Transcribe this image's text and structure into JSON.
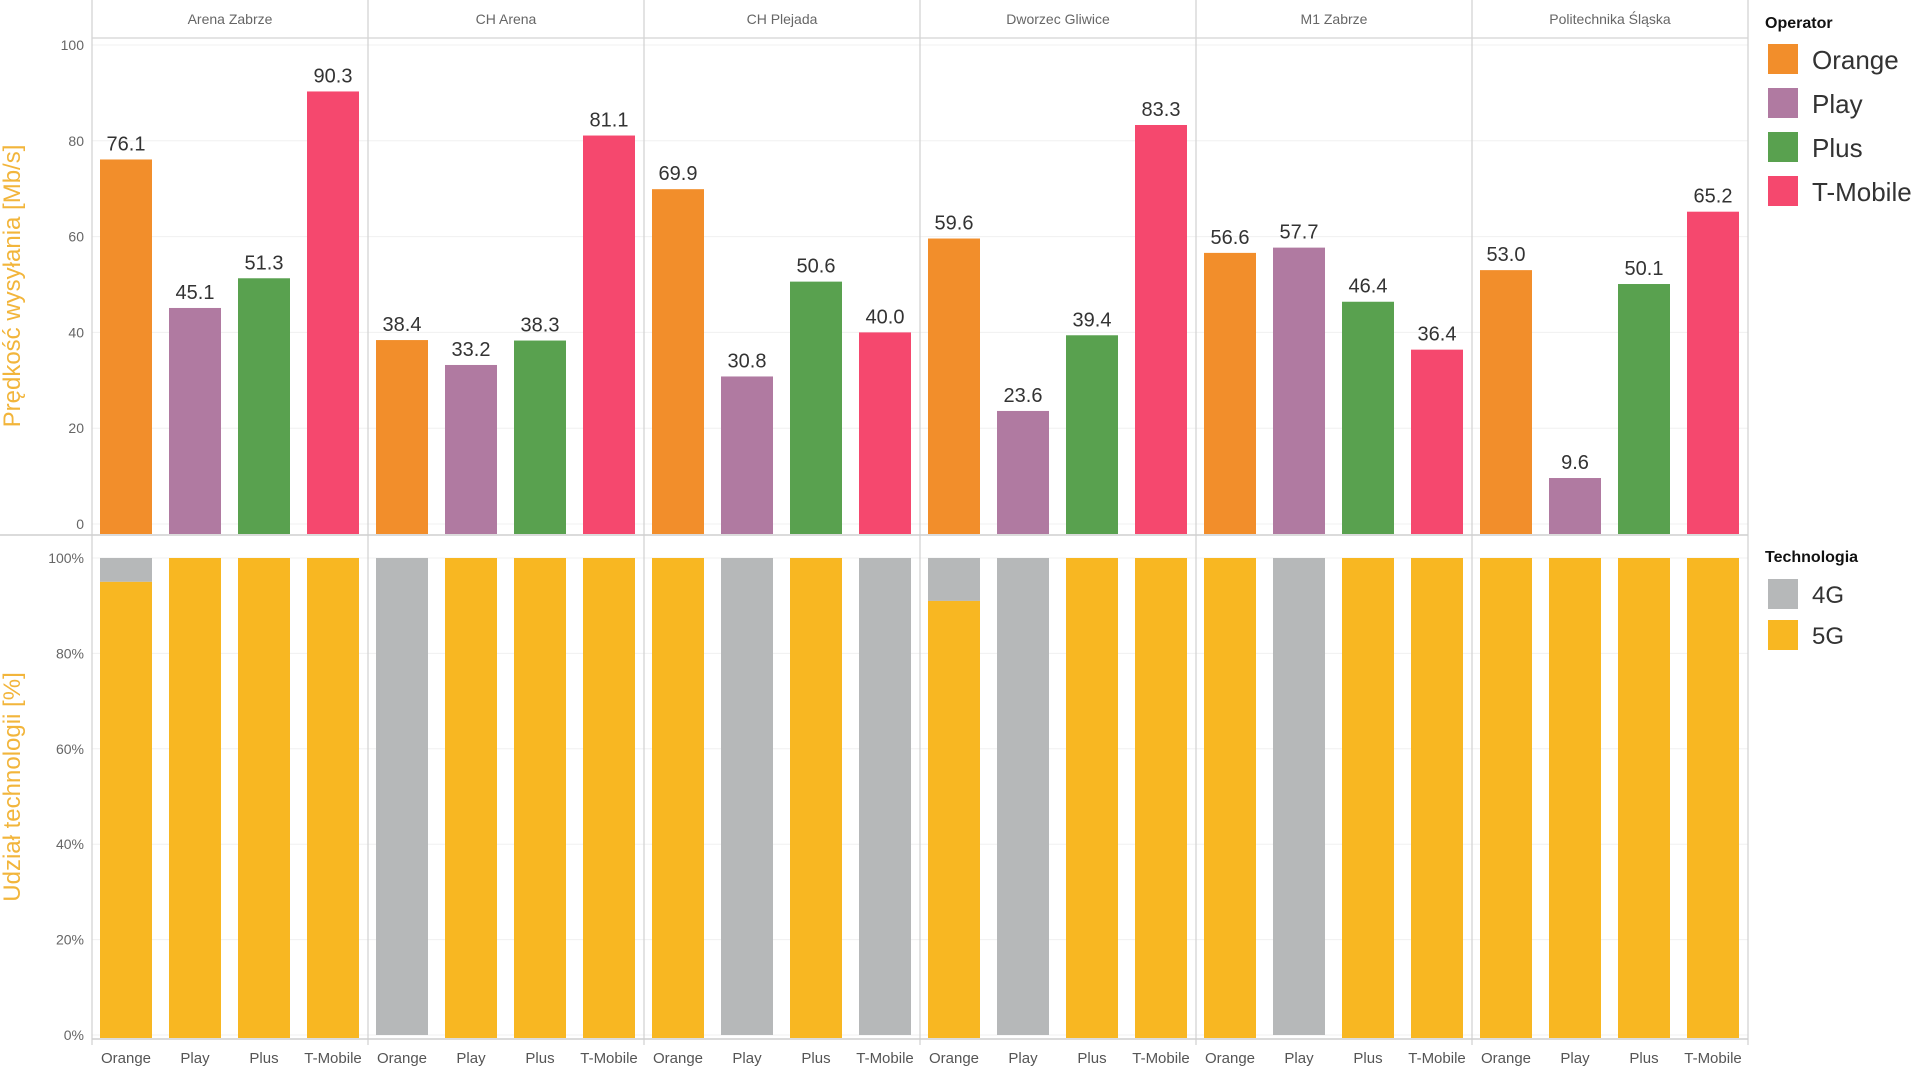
{
  "chart_data": [
    {
      "type": "bar",
      "ylabel": "Prędkość wysyłania [Mb/s]",
      "ylim": [
        0,
        100
      ],
      "yticks": [
        0,
        20,
        40,
        60,
        80,
        100
      ],
      "data_labels": true,
      "grid": true,
      "categories": [
        "Orange",
        "Play",
        "Plus",
        "T-Mobile"
      ],
      "panels": [
        {
          "title": "Arena Zabrze",
          "values": [
            76.1,
            45.1,
            51.3,
            90.3
          ]
        },
        {
          "title": "CH Arena",
          "values": [
            38.4,
            33.2,
            38.3,
            81.1
          ]
        },
        {
          "title": "CH Plejada",
          "values": [
            69.9,
            30.8,
            50.6,
            40.0
          ]
        },
        {
          "title": "Dworzec Gliwice",
          "values": [
            59.6,
            23.6,
            39.4,
            83.3
          ]
        },
        {
          "title": "M1 Zabrze",
          "values": [
            56.6,
            57.7,
            46.4,
            36.4
          ]
        },
        {
          "title": "Politechnika Śląska",
          "values": [
            53.0,
            9.6,
            50.1,
            65.2
          ]
        }
      ]
    },
    {
      "type": "bar",
      "stacked": true,
      "ylabel": "Udział technologii [%]",
      "ylim": [
        0,
        100
      ],
      "yticks": [
        "0%",
        "20%",
        "40%",
        "60%",
        "80%",
        "100%"
      ],
      "grid": true,
      "categories": [
        "Orange",
        "Play",
        "Plus",
        "T-Mobile"
      ],
      "series_names": [
        "4G",
        "5G"
      ],
      "panels": [
        {
          "title": "Arena Zabrze",
          "share_5g": [
            95,
            100,
            100,
            100
          ]
        },
        {
          "title": "CH Arena",
          "share_5g": [
            0,
            100,
            100,
            100
          ]
        },
        {
          "title": "CH Plejada",
          "share_5g": [
            100,
            0,
            100,
            0
          ]
        },
        {
          "title": "Dworzec Gliwice",
          "share_5g": [
            91,
            0,
            100,
            100
          ]
        },
        {
          "title": "M1 Zabrze",
          "share_5g": [
            100,
            0,
            100,
            100
          ]
        },
        {
          "title": "Politechnika Śląska",
          "share_5g": [
            100,
            100,
            100,
            100
          ]
        }
      ]
    }
  ],
  "legend_operator": {
    "title": "Operator",
    "items": [
      {
        "label": "Orange",
        "color": "#f28e2b"
      },
      {
        "label": "Play",
        "color": "#b07aa1"
      },
      {
        "label": "Plus",
        "color": "#59a14f"
      },
      {
        "label": "T-Mobile",
        "color": "#f5486e"
      }
    ]
  },
  "legend_technologia": {
    "title": "Technologia",
    "items": [
      {
        "label": "4G",
        "color": "#b6b8b9"
      },
      {
        "label": "5G",
        "color": "#f8b722"
      }
    ]
  }
}
